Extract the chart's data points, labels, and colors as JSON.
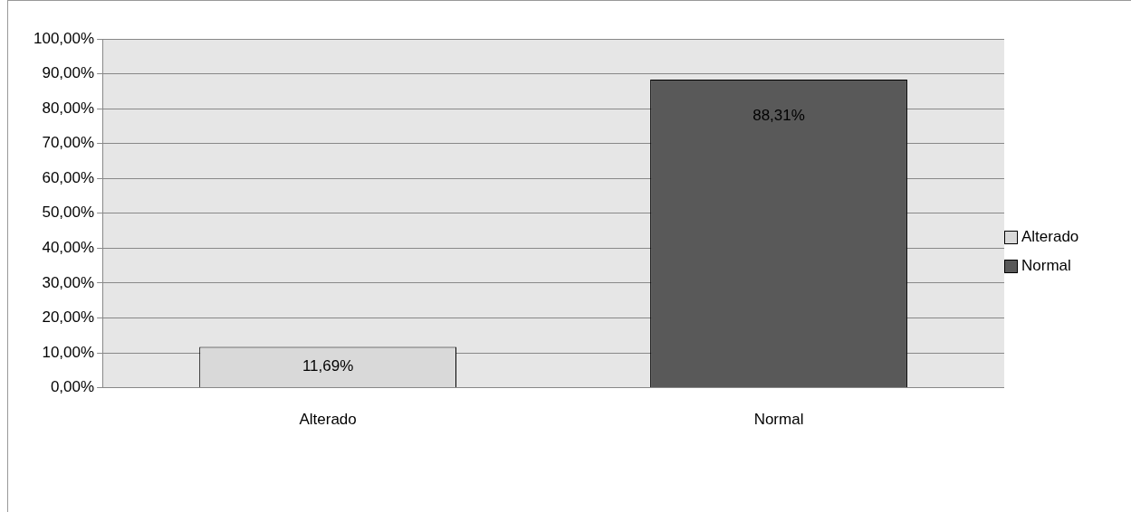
{
  "chart_data": {
    "type": "bar",
    "categories": [
      "Alterado",
      "Normal"
    ],
    "series": [
      {
        "name": "Alterado",
        "color": "#d9d9d9",
        "values": [
          11.69,
          null
        ],
        "value_labels": [
          "11,69%",
          null
        ]
      },
      {
        "name": "Normal",
        "color": "#595959",
        "values": [
          null,
          88.31
        ],
        "value_labels": [
          null,
          "88,31%"
        ]
      }
    ],
    "ylim": [
      0,
      100
    ],
    "yticks": [
      {
        "value": 0,
        "label": "0,00%"
      },
      {
        "value": 10,
        "label": "10,00%"
      },
      {
        "value": 20,
        "label": "20,00%"
      },
      {
        "value": 30,
        "label": "30,00%"
      },
      {
        "value": 40,
        "label": "40,00%"
      },
      {
        "value": 50,
        "label": "50,00%"
      },
      {
        "value": 60,
        "label": "60,00%"
      },
      {
        "value": 70,
        "label": "70,00%"
      },
      {
        "value": 80,
        "label": "80,00%"
      },
      {
        "value": 90,
        "label": "90,00%"
      },
      {
        "value": 100,
        "label": "100,00%"
      }
    ],
    "grid": "y",
    "legend": "right"
  }
}
